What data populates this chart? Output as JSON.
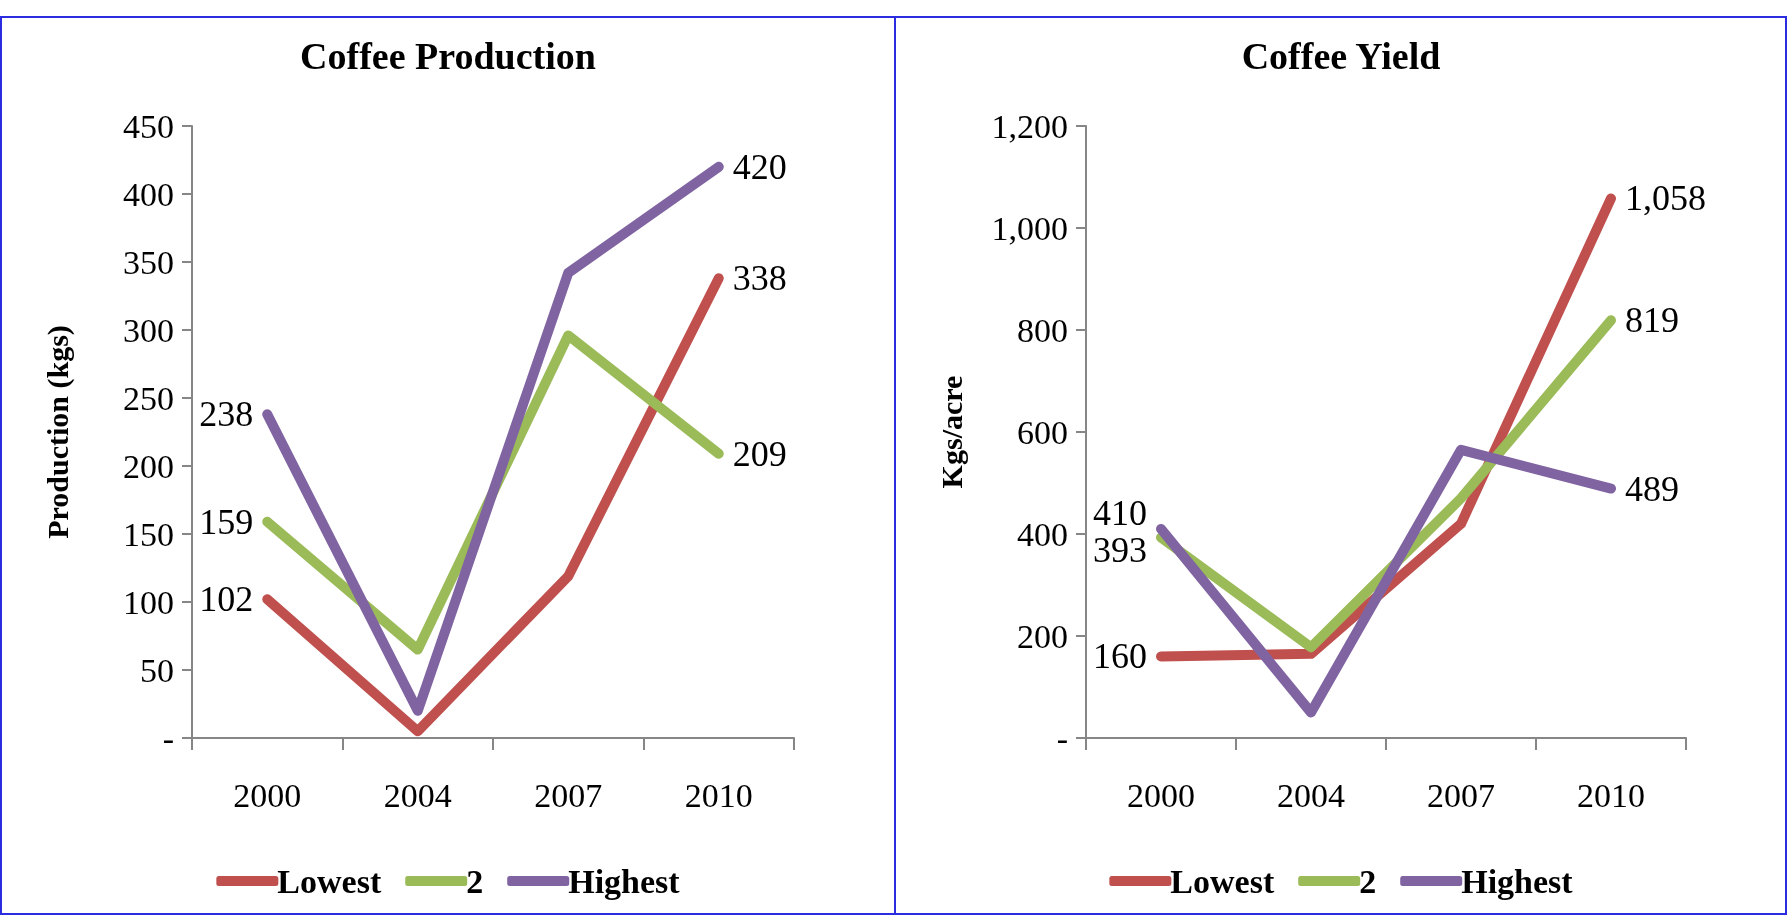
{
  "chart_data": [
    {
      "type": "line",
      "title": "Coffee Production",
      "ylabel": "Production (kgs)",
      "categories": [
        "2000",
        "2004",
        "2007",
        "2010"
      ],
      "series": [
        {
          "name": "Lowest",
          "color": "#c0504d",
          "values": [
            102,
            5,
            119,
            338
          ],
          "value_labels": [
            "102",
            null,
            null,
            "338"
          ]
        },
        {
          "name": "2",
          "color": "#9bbb59",
          "values": [
            159,
            65,
            296,
            209
          ],
          "value_labels": [
            "159",
            null,
            null,
            "209"
          ]
        },
        {
          "name": "Highest",
          "color": "#8064a2",
          "values": [
            238,
            20,
            342,
            420
          ],
          "value_labels": [
            "238",
            null,
            null,
            "420"
          ]
        }
      ],
      "ylim": [
        0,
        450
      ],
      "yticks": [
        {
          "value": 0,
          "label": "-"
        },
        50,
        100,
        150,
        200,
        250,
        300,
        350,
        400,
        450
      ],
      "grid": false,
      "legend": "bottom",
      "marker": "none",
      "line_style": "solid"
    },
    {
      "type": "line",
      "title": "Coffee Yield",
      "ylabel": "Kgs/acre",
      "categories": [
        "2000",
        "2004",
        "2007",
        "2010"
      ],
      "series": [
        {
          "name": "Lowest",
          "color": "#c0504d",
          "values": [
            160,
            165,
            420,
            1058
          ],
          "value_labels": [
            "160",
            null,
            null,
            "1,058"
          ]
        },
        {
          "name": "2",
          "color": "#9bbb59",
          "values": [
            393,
            178,
            470,
            819
          ],
          "value_labels": [
            "393",
            null,
            null,
            "819"
          ]
        },
        {
          "name": "Highest",
          "color": "#8064a2",
          "values": [
            410,
            50,
            565,
            489
          ],
          "value_labels": [
            "410",
            null,
            null,
            "489"
          ]
        }
      ],
      "ylim": [
        0,
        1200
      ],
      "yticks": [
        {
          "value": 0,
          "label": "-"
        },
        200,
        400,
        600,
        800,
        {
          "value": 1000,
          "label": "1,000"
        },
        {
          "value": 1200,
          "label": "1,200"
        }
      ],
      "grid": false,
      "legend": "bottom",
      "marker": "none",
      "line_style": "solid"
    }
  ]
}
